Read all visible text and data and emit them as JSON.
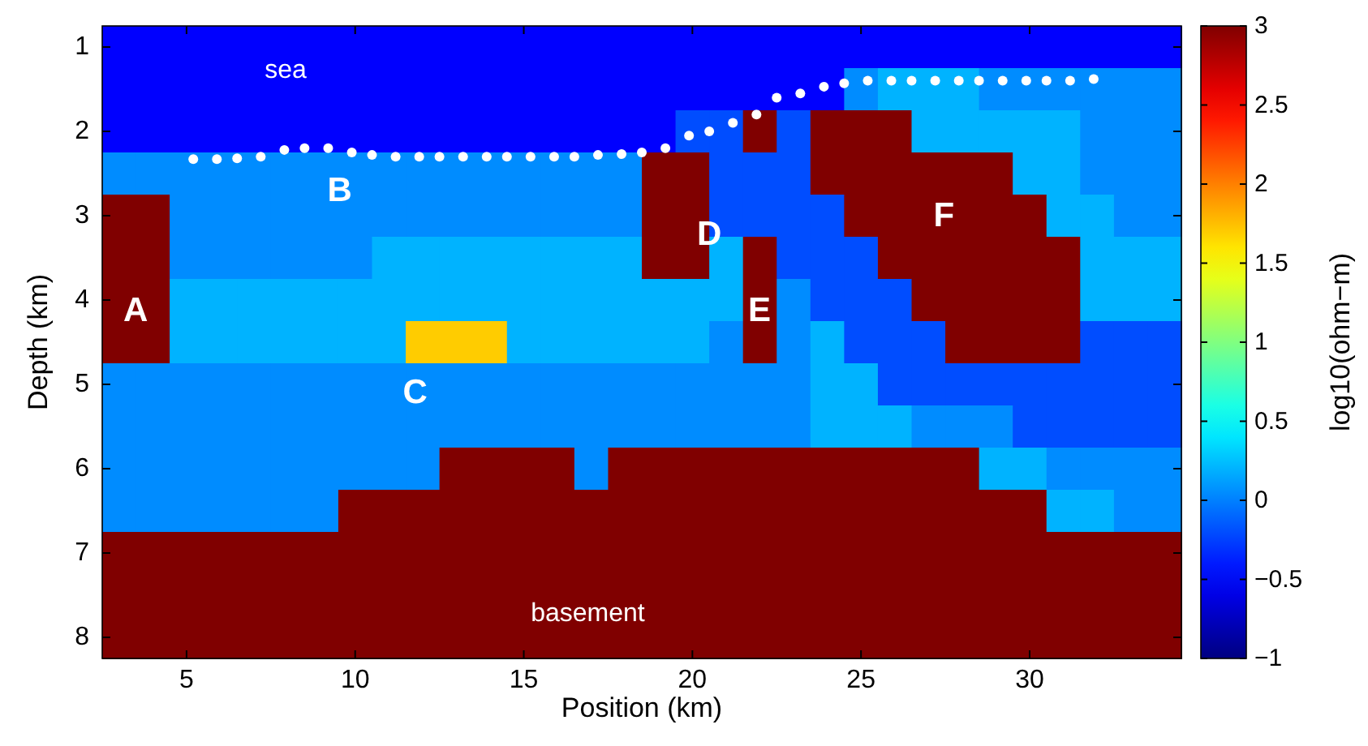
{
  "chart_data": {
    "type": "heatmap",
    "xlabel": "Position (km)",
    "ylabel": "Depth (km)",
    "clabel": "log10(ohm−m)",
    "categories": [
      null,
      null,
      "5",
      null,
      null,
      null,
      null,
      "10",
      null,
      null,
      null,
      null,
      "15",
      null,
      null,
      null,
      null,
      "20",
      null,
      null,
      null,
      null,
      "25",
      null,
      null,
      null,
      null,
      "30",
      null,
      null,
      null,
      null
    ],
    "y_categories": [
      "1",
      null,
      "2",
      null,
      "3",
      null,
      "4",
      null,
      "5",
      null,
      "6",
      null,
      "7",
      null,
      "8"
    ],
    "clim": [
      -1,
      3
    ],
    "cticks": [
      {
        "value": -1,
        "label": "−1"
      },
      {
        "value": -0.5,
        "label": "−0.5"
      },
      0,
      0.5,
      1,
      1.5,
      2,
      2.5,
      3
    ],
    "cells": [
      [
        -0.5,
        -0.5,
        -0.5,
        -0.5,
        -0.5,
        -0.5,
        -0.5,
        -0.5,
        -0.5,
        -0.5,
        -0.5,
        -0.5,
        -0.5,
        -0.5,
        -0.5,
        -0.5,
        -0.5,
        -0.5,
        -0.5,
        -0.5,
        -0.5,
        -0.5,
        -0.5,
        -0.5,
        -0.5,
        -0.5,
        -0.5,
        -0.5,
        -0.5,
        -0.5,
        -0.5,
        -0.5
      ],
      [
        -0.5,
        -0.5,
        -0.5,
        -0.5,
        -0.5,
        -0.5,
        -0.5,
        -0.5,
        -0.5,
        -0.5,
        -0.5,
        -0.5,
        -0.5,
        -0.5,
        -0.5,
        -0.5,
        -0.5,
        -0.5,
        -0.5,
        -0.5,
        -0.5,
        -0.5,
        0.05,
        0.2,
        0.2,
        0.2,
        0.05,
        0.05,
        0.05,
        0.05,
        0.05,
        0.05
      ],
      [
        -0.5,
        -0.5,
        -0.5,
        -0.5,
        -0.5,
        -0.5,
        -0.5,
        -0.5,
        -0.5,
        -0.5,
        -0.5,
        -0.5,
        -0.5,
        -0.5,
        -0.5,
        -0.5,
        -0.5,
        -0.2,
        -0.2,
        3,
        -0.2,
        3,
        3,
        3,
        0.2,
        0.2,
        0.2,
        0.2,
        0.2,
        0.05,
        0.05,
        0.05
      ],
      [
        0.05,
        0.05,
        0.05,
        0.05,
        0.05,
        0.05,
        0.05,
        0.05,
        0.05,
        0.05,
        0.05,
        0.05,
        0.05,
        0.05,
        0.05,
        0.05,
        3,
        3,
        -0.2,
        -0.2,
        -0.2,
        3,
        3,
        3,
        3,
        3,
        3,
        0.2,
        0.2,
        0.05,
        0.05,
        0.05
      ],
      [
        3,
        3,
        0.05,
        0.05,
        0.05,
        0.05,
        0.05,
        0.05,
        0.05,
        0.05,
        0.05,
        0.05,
        0.05,
        0.05,
        0.05,
        0.05,
        3,
        3,
        -0.2,
        -0.2,
        -0.2,
        -0.2,
        3,
        3,
        3,
        3,
        3,
        3,
        0.2,
        0.2,
        0.05,
        0.05
      ],
      [
        3,
        3,
        0.05,
        0.05,
        0.05,
        0.05,
        0.05,
        0.05,
        0.2,
        0.2,
        0.2,
        0.2,
        0.2,
        0.2,
        0.2,
        0.2,
        3,
        3,
        0.2,
        3,
        -0.2,
        -0.2,
        -0.2,
        3,
        3,
        3,
        3,
        3,
        3,
        0.2,
        0.2,
        0.2
      ],
      [
        3,
        3,
        0.2,
        0.2,
        0.2,
        0.2,
        0.2,
        0.2,
        0.2,
        0.2,
        0.2,
        0.2,
        0.2,
        0.2,
        0.2,
        0.2,
        0.2,
        0.2,
        0.2,
        3,
        0.05,
        -0.2,
        -0.2,
        -0.2,
        3,
        3,
        3,
        3,
        3,
        0.2,
        0.2,
        0.2
      ],
      [
        3,
        3,
        0.2,
        0.2,
        0.2,
        0.2,
        0.2,
        0.2,
        0.2,
        1.7,
        1.7,
        1.7,
        0.2,
        0.2,
        0.2,
        0.2,
        0.2,
        0.2,
        0.05,
        3,
        0.05,
        0.2,
        -0.2,
        -0.2,
        -0.2,
        3,
        3,
        3,
        3,
        -0.2,
        -0.2,
        -0.2
      ],
      [
        0.05,
        0.05,
        0.05,
        0.05,
        0.05,
        0.05,
        0.05,
        0.05,
        0.05,
        0.05,
        0.05,
        0.05,
        0.05,
        0.05,
        0.05,
        0.05,
        0.05,
        0.05,
        0.05,
        0.05,
        0.05,
        0.2,
        0.2,
        -0.2,
        -0.2,
        -0.2,
        -0.2,
        -0.2,
        -0.2,
        -0.2,
        -0.2,
        -0.2
      ],
      [
        0.05,
        0.05,
        0.05,
        0.05,
        0.05,
        0.05,
        0.05,
        0.05,
        0.05,
        0.05,
        0.05,
        0.05,
        0.05,
        0.05,
        0.05,
        0.05,
        0.05,
        0.05,
        0.05,
        0.05,
        0.05,
        0.2,
        0.2,
        0.2,
        0.05,
        0.05,
        0.05,
        -0.2,
        -0.2,
        -0.2,
        -0.2,
        -0.2
      ],
      [
        0.05,
        0.05,
        0.05,
        0.05,
        0.05,
        0.05,
        0.05,
        0.05,
        0.05,
        0.05,
        3,
        3,
        3,
        3,
        0.05,
        3,
        3,
        3,
        3,
        3,
        3,
        3,
        3,
        3,
        3,
        3,
        0.2,
        0.2,
        0.05,
        0.05,
        0.05,
        0.05
      ],
      [
        0.05,
        0.05,
        0.05,
        0.05,
        0.05,
        0.05,
        0.05,
        3,
        3,
        3,
        3,
        3,
        3,
        3,
        3,
        3,
        3,
        3,
        3,
        3,
        3,
        3,
        3,
        3,
        3,
        3,
        3,
        3,
        0.2,
        0.2,
        0.05,
        0.05
      ],
      [
        3,
        3,
        3,
        3,
        3,
        3,
        3,
        3,
        3,
        3,
        3,
        3,
        3,
        3,
        3,
        3,
        3,
        3,
        3,
        3,
        3,
        3,
        3,
        3,
        3,
        3,
        3,
        3,
        3,
        3,
        3,
        3
      ],
      [
        3,
        3,
        3,
        3,
        3,
        3,
        3,
        3,
        3,
        3,
        3,
        3,
        3,
        3,
        3,
        3,
        3,
        3,
        3,
        3,
        3,
        3,
        3,
        3,
        3,
        3,
        3,
        3,
        3,
        3,
        3,
        3
      ],
      [
        3,
        3,
        3,
        3,
        3,
        3,
        3,
        3,
        3,
        3,
        3,
        3,
        3,
        3,
        3,
        3,
        3,
        3,
        3,
        3,
        3,
        3,
        3,
        3,
        3,
        3,
        3,
        3,
        3,
        3,
        3,
        3
      ]
    ],
    "annotations": [
      "sea",
      "A",
      "B",
      "C",
      "D",
      "E",
      "F",
      "basement"
    ]
  }
}
